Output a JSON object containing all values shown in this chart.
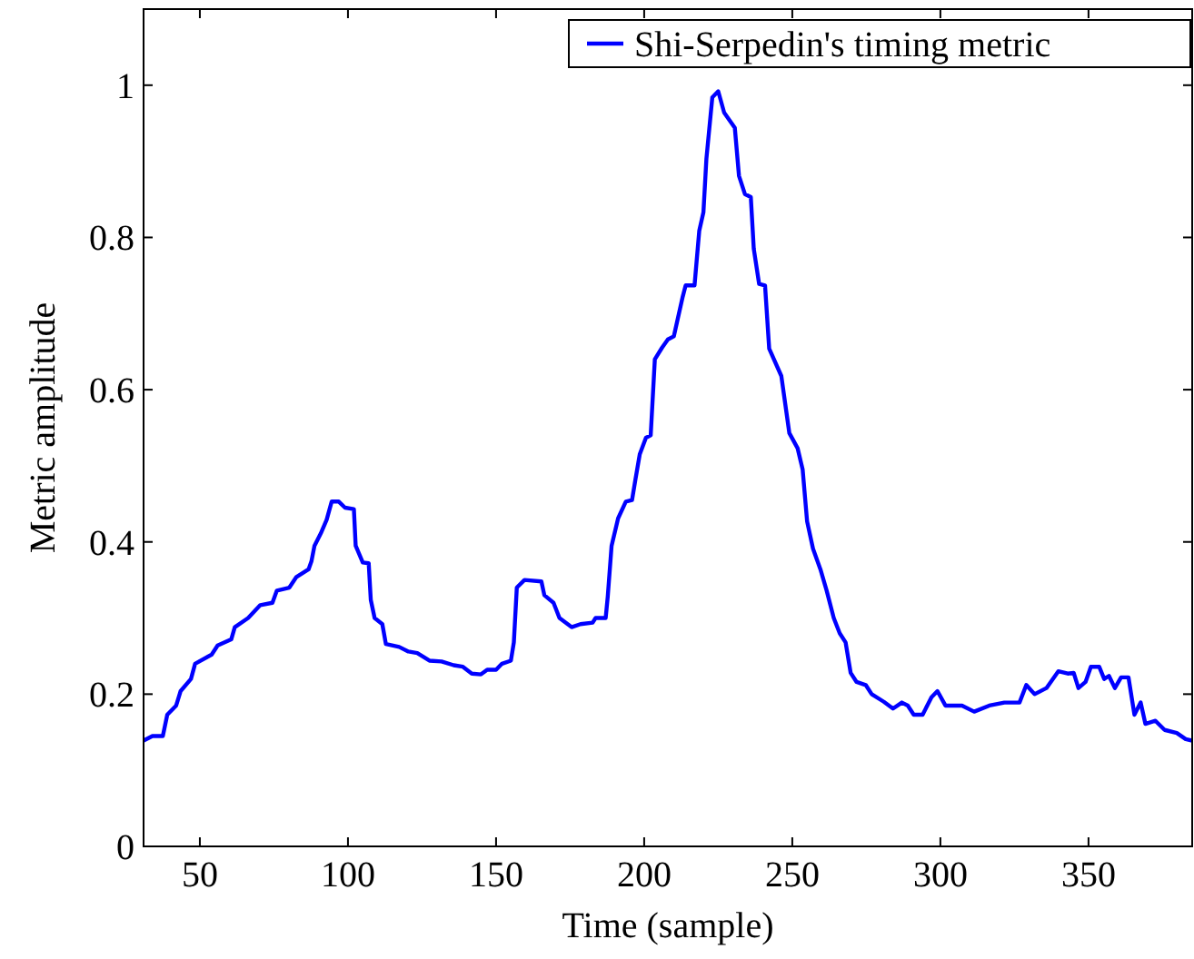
{
  "chart_data": {
    "type": "line",
    "xlabel": "Time (sample)",
    "ylabel": "Metric amplitude",
    "xlim": [
      31,
      385
    ],
    "ylim": [
      0,
      1.1
    ],
    "xticks": [
      50,
      100,
      150,
      200,
      250,
      300,
      350
    ],
    "yticks": [
      0,
      0.2,
      0.4,
      0.6,
      0.8,
      1
    ],
    "grid": false,
    "legend": "top right",
    "line_style": "solid",
    "marker": "none",
    "series": [
      {
        "name": "Shi-Serpedin's timing metric",
        "color": "#0000ff",
        "x": [
          31,
          34,
          37.5,
          39,
          42,
          43.5,
          47,
          48.4,
          54,
          56,
          60.6,
          61.8,
          66.3,
          70.4,
          74.5,
          76,
          80.2,
          82.6,
          86.7,
          87.7,
          88.7,
          90.8,
          92.8,
          94.5,
          96.9,
          99,
          102,
          102.6,
          105,
          107,
          107.7,
          109,
          111.6,
          112.8,
          117.3,
          120.4,
          123.4,
          127.5,
          131.6,
          135.7,
          138.8,
          141.8,
          144.9,
          147,
          150,
          152,
          155,
          156,
          157,
          159.6,
          165.3,
          166.3,
          169.4,
          171.4,
          175.5,
          178.5,
          182.6,
          183.6,
          187,
          187.7,
          189,
          191.2,
          193.8,
          195.9,
          197,
          198.5,
          200.6,
          202.2,
          203.6,
          206,
          208,
          210,
          213,
          214,
          217,
          218.6,
          220,
          221,
          223,
          225,
          227,
          230.6,
          232,
          234,
          236,
          237,
          238.8,
          240.8,
          242.2,
          246.3,
          249,
          251.8,
          253.5,
          255,
          257,
          259.5,
          261.6,
          264,
          266,
          268,
          269.7,
          271.7,
          274.8,
          276.8,
          280.9,
          284,
          287,
          289,
          291,
          294,
          297,
          299,
          301.7,
          307.3,
          311.4,
          316.5,
          321.6,
          326.7,
          329,
          331.8,
          335.8,
          339.8,
          343,
          345,
          346.6,
          349,
          350.8,
          353.6,
          355.3,
          356.9,
          358.9,
          361,
          363.5,
          365.5,
          367.6,
          369.2,
          372.6,
          375.7,
          379.8,
          382.8,
          385
        ],
        "values": [
          0.139,
          0.145,
          0.145,
          0.173,
          0.185,
          0.204,
          0.22,
          0.24,
          0.252,
          0.264,
          0.272,
          0.288,
          0.3,
          0.317,
          0.32,
          0.336,
          0.34,
          0.354,
          0.364,
          0.375,
          0.395,
          0.411,
          0.429,
          0.453,
          0.453,
          0.445,
          0.443,
          0.395,
          0.373,
          0.372,
          0.324,
          0.3,
          0.292,
          0.266,
          0.262,
          0.256,
          0.254,
          0.244,
          0.243,
          0.238,
          0.236,
          0.227,
          0.226,
          0.232,
          0.232,
          0.24,
          0.244,
          0.268,
          0.34,
          0.35,
          0.348,
          0.33,
          0.32,
          0.3,
          0.288,
          0.292,
          0.294,
          0.3,
          0.3,
          0.328,
          0.395,
          0.431,
          0.453,
          0.455,
          0.481,
          0.515,
          0.537,
          0.54,
          0.64,
          0.655,
          0.666,
          0.67,
          0.722,
          0.737,
          0.737,
          0.809,
          0.833,
          0.903,
          0.984,
          0.992,
          0.964,
          0.944,
          0.881,
          0.857,
          0.853,
          0.785,
          0.739,
          0.737,
          0.654,
          0.618,
          0.543,
          0.523,
          0.495,
          0.427,
          0.391,
          0.364,
          0.336,
          0.3,
          0.28,
          0.268,
          0.228,
          0.216,
          0.212,
          0.2,
          0.19,
          0.181,
          0.189,
          0.185,
          0.173,
          0.173,
          0.196,
          0.204,
          0.185,
          0.185,
          0.177,
          0.185,
          0.189,
          0.189,
          0.212,
          0.2,
          0.208,
          0.23,
          0.227,
          0.228,
          0.208,
          0.216,
          0.236,
          0.236,
          0.22,
          0.224,
          0.208,
          0.222,
          0.222,
          0.173,
          0.189,
          0.161,
          0.165,
          0.153,
          0.149,
          0.141,
          0.139
        ]
      }
    ]
  }
}
